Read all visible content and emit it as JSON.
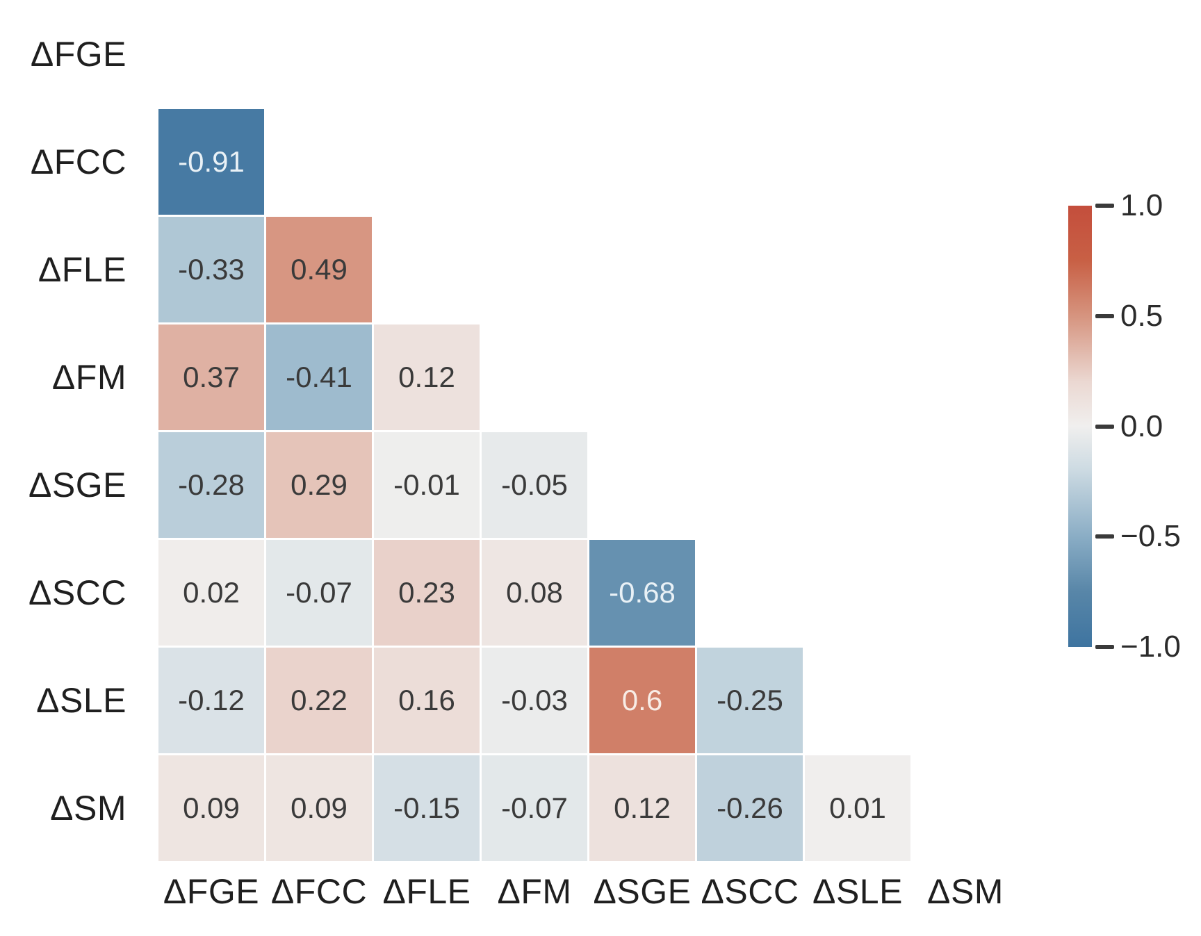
{
  "chart_data": {
    "type": "heatmap",
    "subtype": "correlation-matrix-lower-triangle",
    "title": "",
    "variables": [
      "ΔFGE",
      "ΔFCC",
      "ΔFLE",
      "ΔFM",
      "ΔSGE",
      "ΔSCC",
      "ΔSLE",
      "ΔSM"
    ],
    "x_tick_labels": [
      "ΔFGE",
      "ΔFCC",
      "ΔFLE",
      "ΔFM",
      "ΔSGE",
      "ΔSCC",
      "ΔSLE",
      "ΔSM"
    ],
    "y_tick_labels": [
      "ΔFGE",
      "ΔFCC",
      "ΔFLE",
      "ΔFM",
      "ΔSGE",
      "ΔSCC",
      "ΔSLE",
      "ΔSM"
    ],
    "rows": [
      {
        "label": "ΔFGE",
        "values": []
      },
      {
        "label": "ΔFCC",
        "values": [
          "-0.91"
        ]
      },
      {
        "label": "ΔFLE",
        "values": [
          "-0.33",
          "0.49"
        ]
      },
      {
        "label": "ΔFM",
        "values": [
          "0.37",
          "-0.41",
          "0.12"
        ]
      },
      {
        "label": "ΔSGE",
        "values": [
          "-0.28",
          "0.29",
          "-0.01",
          "-0.05"
        ]
      },
      {
        "label": "ΔSCC",
        "values": [
          "0.02",
          "-0.07",
          "0.23",
          "0.08",
          "-0.68"
        ]
      },
      {
        "label": "ΔSLE",
        "values": [
          "-0.12",
          "0.22",
          "0.16",
          "-0.03",
          "0.6",
          "-0.25"
        ]
      },
      {
        "label": "ΔSM",
        "values": [
          "0.09",
          "0.09",
          "-0.15",
          "-0.07",
          "0.12",
          "-0.26",
          "0.01"
        ]
      }
    ],
    "colorbar": {
      "vmin": -1.0,
      "vmax": 1.0,
      "tick_labels": [
        "1.0",
        "0.5",
        "0.0",
        "−0.5",
        "−1.0"
      ],
      "tick_values": [
        1.0,
        0.5,
        0.0,
        -0.5,
        -1.0
      ]
    },
    "colormap_anchors": [
      {
        "v": -1.0,
        "c": "#3e74a0"
      },
      {
        "v": -0.75,
        "c": "#5886a8"
      },
      {
        "v": -0.5,
        "c": "#8aadc5"
      },
      {
        "v": -0.2,
        "c": "#ccdae2"
      },
      {
        "v": 0.0,
        "c": "#f0efee"
      },
      {
        "v": 0.2,
        "c": "#ebd8d2"
      },
      {
        "v": 0.5,
        "c": "#d6947f"
      },
      {
        "v": 0.75,
        "c": "#c86045"
      },
      {
        "v": 1.0,
        "c": "#c44e3c"
      }
    ],
    "legend_position": "right",
    "grid": false
  },
  "style_tokens": {
    "background": "#ffffff",
    "axis_label_color": "#1f1f1f",
    "cell_text_dark": "#3a3a3a",
    "cell_text_light_on_blue": "#e9f1f6",
    "cell_text_light_on_red": "#f8ece6",
    "light_text_threshold": 0.6,
    "tick_dash_color": "#3a3a3a"
  }
}
